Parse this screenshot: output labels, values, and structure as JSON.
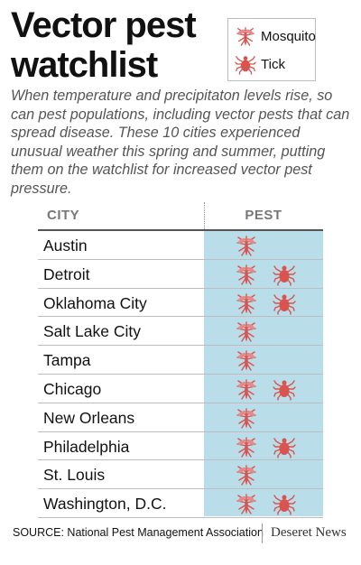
{
  "title": "Vector pest watchlist",
  "legend": {
    "mosquito_label": "Mosquito",
    "tick_label": "Tick"
  },
  "intro": "When temperature and precipitaton levels rise, so can pest populations, including vector pests that can spread disease. These 10 cities experienced unusual weather this spring and summer, putting them on the watchlist for increased vector pest pressure.",
  "table": {
    "headers": {
      "city": "CITY",
      "pest": "PEST"
    },
    "rows": [
      {
        "city": "Austin",
        "mosquito": true,
        "tick": false
      },
      {
        "city": "Detroit",
        "mosquito": true,
        "tick": true
      },
      {
        "city": "Oklahoma City",
        "mosquito": true,
        "tick": true
      },
      {
        "city": "Salt Lake City",
        "mosquito": true,
        "tick": false
      },
      {
        "city": "Tampa",
        "mosquito": true,
        "tick": false
      },
      {
        "city": "Chicago",
        "mosquito": true,
        "tick": true
      },
      {
        "city": "New Orleans",
        "mosquito": true,
        "tick": false
      },
      {
        "city": "Philadelphia",
        "mosquito": true,
        "tick": true
      },
      {
        "city": "St. Louis",
        "mosquito": true,
        "tick": false
      },
      {
        "city": "Washington, D.C.",
        "mosquito": true,
        "tick": true
      }
    ]
  },
  "source": "SOURCE: National Pest Management Association",
  "brand": "Deseret News",
  "colors": {
    "pest_column": "#b9dde9",
    "icon_red": "#d9534f"
  },
  "icons": {
    "mosquito": "mosquito-icon",
    "tick": "tick-icon"
  }
}
